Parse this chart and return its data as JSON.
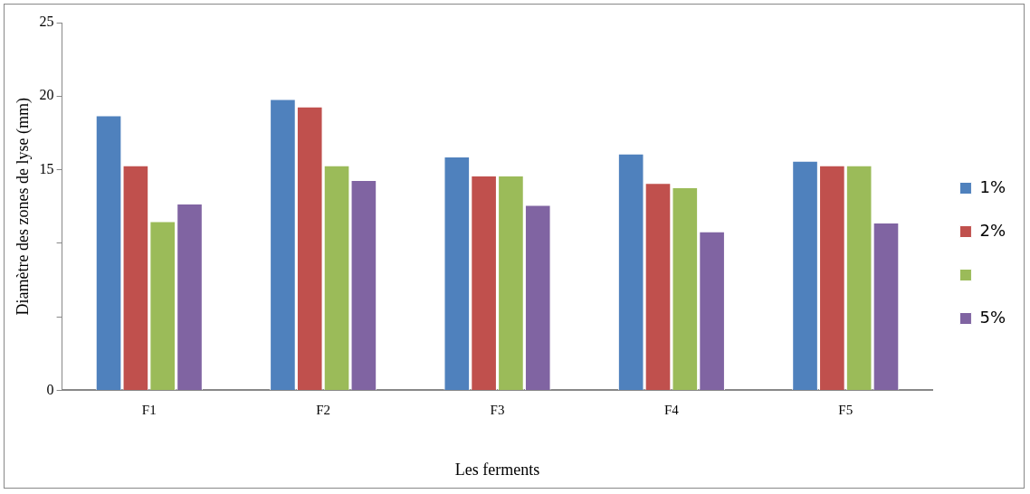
{
  "chart_data": {
    "type": "bar",
    "xlabel": "Les ferments",
    "ylabel": "Diamètre des zones de lyse (mm)",
    "categories": [
      "F1",
      "F2",
      "F3",
      "F4",
      "F5"
    ],
    "series": [
      {
        "name": "1%",
        "color": "#4f81bd",
        "values": [
          18.7,
          19.8,
          15.9,
          16.1,
          15.6
        ]
      },
      {
        "name": "2%",
        "color": "#c0504d",
        "values": [
          15.3,
          19.3,
          14.6,
          14.1,
          15.3
        ]
      },
      {
        "color": "#9bbb59",
        "values": [
          11.5,
          15.3,
          14.6,
          13.8,
          15.3
        ]
      },
      {
        "name": "5%",
        "color": "#8064a2",
        "values": [
          12.7,
          14.3,
          12.6,
          10.8,
          11.4
        ]
      }
    ],
    "ylim": [
      0,
      25
    ],
    "yticks": [
      0,
      {
        "value": 5,
        "label": null
      },
      {
        "value": 10,
        "label": null
      },
      15,
      20,
      25
    ],
    "grid": false,
    "legend": "right"
  }
}
